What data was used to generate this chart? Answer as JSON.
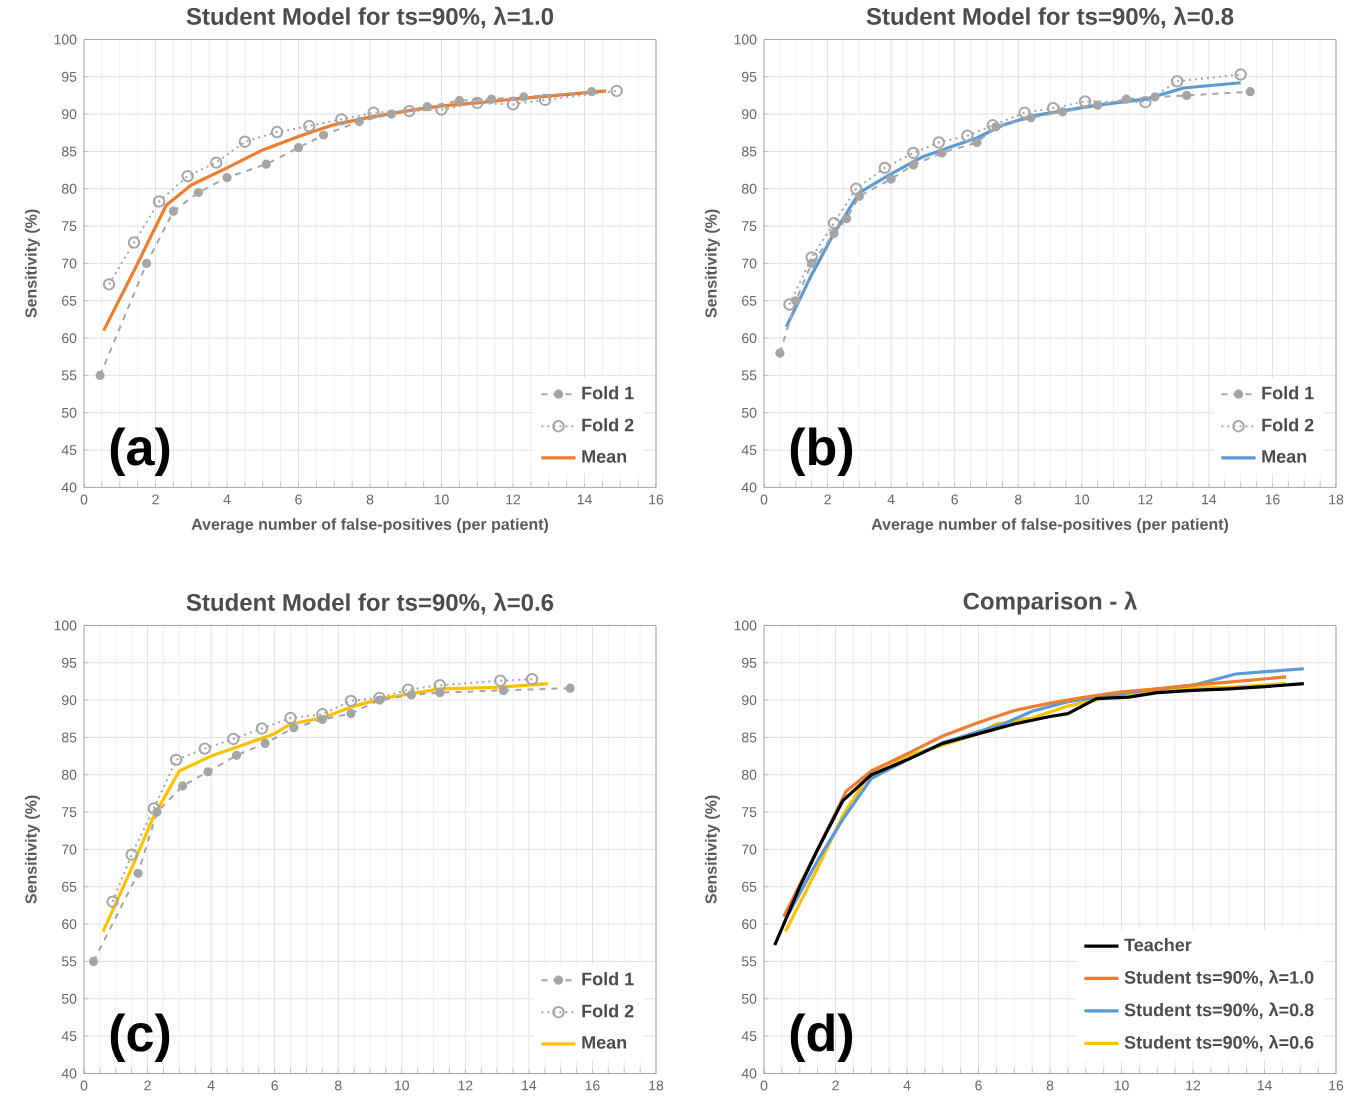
{
  "chart_data": [
    {
      "type": "line",
      "title": "Student Model for ts=90%, λ=1.0",
      "xlabel": "Average number of false-positives (per patient)",
      "ylabel": "Sensitivity (%)",
      "xlim": [
        0,
        16
      ],
      "xticks": [
        0,
        2,
        4,
        6,
        8,
        10,
        12,
        14,
        16
      ],
      "ylim": [
        40,
        100
      ],
      "yticks": [
        40,
        45,
        50,
        55,
        60,
        65,
        70,
        75,
        80,
        85,
        90,
        95,
        100
      ],
      "grid": true,
      "legend": "bottom right",
      "annotations": [
        "(a)"
      ],
      "series": [
        {
          "name": "Fold 1",
          "color": "#a5a5a5",
          "marker": "circle",
          "line_style": "dashed",
          "x": [
            0.45,
            1.75,
            2.5,
            3.2,
            4,
            5.1,
            6,
            6.7,
            7.7,
            8.6,
            9.6,
            10.5,
            11.4,
            12.3,
            14.2
          ],
          "values": [
            55,
            70,
            77,
            79.5,
            81.5,
            83.3,
            85.5,
            87.2,
            89,
            90,
            91,
            91.8,
            92,
            92.3,
            93
          ]
        },
        {
          "name": "Fold 2",
          "color": "#a5a5a5",
          "marker": "circle",
          "line_style": "dotted",
          "x": [
            0.7,
            1.4,
            2.1,
            2.9,
            3.7,
            4.5,
            5.4,
            6.3,
            7.2,
            8.1,
            9.1,
            10,
            11,
            12,
            12.9,
            14.9
          ],
          "values": [
            67.2,
            72.8,
            78.3,
            81.7,
            83.5,
            86.3,
            87.6,
            88.4,
            89.3,
            90.2,
            90.4,
            90.6,
            91.5,
            91.3,
            91.9,
            93.1
          ]
        },
        {
          "name": "Mean",
          "color": "#ed7d31",
          "marker": "none",
          "line_style": "solid",
          "x": [
            0.55,
            1.5,
            2.3,
            3,
            4,
            5,
            6,
            7,
            8,
            9,
            10,
            11,
            12,
            13,
            14.6
          ],
          "values": [
            61,
            70,
            77.8,
            80.5,
            82.8,
            85.2,
            87,
            88.6,
            89.6,
            90.4,
            91.1,
            91.5,
            92,
            92.4,
            93.1
          ]
        }
      ]
    },
    {
      "type": "line",
      "title": "Student Model for ts=90%, λ=0.8",
      "xlabel": "Average number of false-positives (per patient)",
      "ylabel": "Sensitivity (%)",
      "xlim": [
        0,
        18
      ],
      "xticks": [
        0,
        2,
        4,
        6,
        8,
        10,
        12,
        14,
        16,
        18
      ],
      "ylim": [
        40,
        100
      ],
      "yticks": [
        40,
        45,
        50,
        55,
        60,
        65,
        70,
        75,
        80,
        85,
        90,
        95,
        100
      ],
      "grid": true,
      "legend": "bottom right",
      "annotations": [
        "(b)"
      ],
      "series": [
        {
          "name": "Fold 1",
          "color": "#a5a5a5",
          "marker": "circle",
          "line_style": "dashed",
          "x": [
            0.5,
            1,
            1.5,
            2.2,
            2.6,
            3,
            4,
            4.7,
            5.6,
            6.7,
            7.3,
            8.4,
            9.4,
            10.5,
            11.4,
            12.3,
            13.3,
            15.3
          ],
          "values": [
            58,
            65,
            70,
            74,
            76,
            79,
            81.3,
            83.2,
            84.8,
            86.2,
            88.3,
            89.5,
            90.3,
            91.2,
            92,
            92.3,
            92.5,
            93
          ]
        },
        {
          "name": "Fold 2",
          "color": "#a5a5a5",
          "marker": "circle",
          "line_style": "dotted",
          "x": [
            0.8,
            1.5,
            2.2,
            2.9,
            3.8,
            4.7,
            5.5,
            6.4,
            7.2,
            8.2,
            9.1,
            10.1,
            12,
            13,
            15
          ],
          "values": [
            64.5,
            70.8,
            75.4,
            80,
            82.8,
            84.8,
            86.2,
            87.1,
            88.5,
            90.2,
            90.8,
            91.7,
            91.6,
            94.4,
            95.3
          ]
        },
        {
          "name": "Mean",
          "color": "#5b9bd5",
          "marker": "none",
          "line_style": "solid",
          "x": [
            0.7,
            1.5,
            2.2,
            3,
            4,
            5,
            6,
            6.7,
            7.5,
            8.5,
            9.5,
            10.5,
            12,
            13.2,
            15
          ],
          "values": [
            61.5,
            68.5,
            74,
            79.5,
            82,
            84.3,
            85.8,
            86.8,
            88.5,
            89.8,
            90.5,
            91.2,
            92,
            93.5,
            94.2
          ]
        }
      ]
    },
    {
      "type": "line",
      "title": "Student Model for ts=90%, λ=0.6",
      "ylabel": "Sensitivity (%)",
      "xlim": [
        0,
        18
      ],
      "xticks": [
        0,
        2,
        4,
        6,
        8,
        10,
        12,
        14,
        16,
        18
      ],
      "ylim": [
        40,
        100
      ],
      "yticks": [
        40,
        45,
        50,
        55,
        60,
        65,
        70,
        75,
        80,
        85,
        90,
        95,
        100
      ],
      "grid": true,
      "legend": "bottom right",
      "annotations": [
        "(c)"
      ],
      "series": [
        {
          "name": "Fold 1",
          "color": "#a5a5a5",
          "marker": "circle",
          "line_style": "dashed",
          "x": [
            0.3,
            1.7,
            2.3,
            3.1,
            3.9,
            4.8,
            5.7,
            6.6,
            7.5,
            8.4,
            9.3,
            10.3,
            11.2,
            13.2,
            15.3
          ],
          "values": [
            55,
            66.8,
            75,
            78.5,
            80.4,
            82.6,
            84.2,
            86.3,
            87.4,
            88.2,
            90,
            90.7,
            91,
            91.3,
            91.6
          ]
        },
        {
          "name": "Fold 2",
          "color": "#a5a5a5",
          "marker": "circle",
          "line_style": "dotted",
          "x": [
            0.9,
            1.5,
            2.2,
            2.9,
            3.8,
            4.7,
            5.6,
            6.5,
            7.5,
            8.4,
            9.3,
            10.2,
            11.2,
            13.1,
            14.1
          ],
          "values": [
            63,
            69.3,
            75.5,
            82,
            83.5,
            84.8,
            86.2,
            87.6,
            88.1,
            89.9,
            90.3,
            91.4,
            92,
            92.6,
            92.8
          ]
        },
        {
          "name": "Mean",
          "color": "#ffc000",
          "marker": "none",
          "line_style": "solid",
          "x": [
            0.6,
            1.5,
            2.2,
            3,
            4,
            5,
            6,
            6.5,
            7.5,
            8.5,
            9.5,
            10.5,
            11.2,
            13,
            14.6
          ],
          "values": [
            59,
            67.5,
            74.5,
            80.5,
            82.5,
            84,
            85.5,
            86.8,
            87.6,
            89.2,
            90.3,
            91,
            91.5,
            91.7,
            92.2
          ]
        }
      ]
    },
    {
      "type": "line",
      "title": "Comparison - λ",
      "ylabel": "Sensitivity (%)",
      "xlim": [
        0,
        16
      ],
      "xticks": [
        0,
        2,
        4,
        6,
        8,
        10,
        12,
        14,
        16
      ],
      "ylim": [
        40,
        100
      ],
      "yticks": [
        40,
        45,
        50,
        55,
        60,
        65,
        70,
        75,
        80,
        85,
        90,
        95,
        100
      ],
      "grid": true,
      "legend": "bottom right",
      "annotations": [
        "(d)"
      ],
      "series": [
        {
          "name": "Teacher",
          "color": "#000000",
          "marker": "none",
          "line_style": "solid",
          "x": [
            0.3,
            1,
            1.5,
            2.2,
            3,
            4,
            5,
            6,
            7,
            8,
            8.5,
            9.3,
            10.2,
            11,
            12,
            13,
            14,
            15.1
          ],
          "values": [
            57.2,
            65,
            70,
            76.5,
            80,
            82,
            84.2,
            85.5,
            86.8,
            87.8,
            88.2,
            90.2,
            90.4,
            91,
            91.3,
            91.5,
            91.8,
            92.2
          ]
        },
        {
          "name": "Student ts=90%, λ=1.0",
          "color": "#ed7d31",
          "marker": "none",
          "line_style": "solid",
          "x": [
            0.55,
            1.5,
            2.3,
            3,
            4,
            5,
            6,
            7,
            8,
            9,
            10,
            11,
            12,
            13,
            14.6
          ],
          "values": [
            61,
            70,
            77.8,
            80.5,
            82.8,
            85.2,
            87,
            88.6,
            89.6,
            90.4,
            91.1,
            91.5,
            92,
            92.4,
            93.1
          ]
        },
        {
          "name": "Student ts=90%, λ=0.8",
          "color": "#5b9bd5",
          "marker": "none",
          "line_style": "solid",
          "x": [
            0.7,
            1.5,
            2.2,
            3,
            4,
            5,
            6,
            6.7,
            7.5,
            8.5,
            9.5,
            10.5,
            12,
            13.2,
            15.1
          ],
          "values": [
            61.5,
            68.5,
            74,
            79.5,
            82,
            84.3,
            85.8,
            86.8,
            88.5,
            89.8,
            90.5,
            91.2,
            92,
            93.5,
            94.2
          ]
        },
        {
          "name": "Student ts=90%, λ=0.6",
          "color": "#ffc000",
          "marker": "none",
          "line_style": "solid",
          "x": [
            0.6,
            1.5,
            2.2,
            3,
            4,
            5,
            6,
            6.5,
            7.5,
            8.5,
            9.5,
            10.5,
            11.2,
            13,
            14.6
          ],
          "values": [
            59,
            67.5,
            74.5,
            80.5,
            82.5,
            84,
            85.5,
            86.8,
            87.6,
            89.2,
            90.3,
            91,
            91.5,
            91.7,
            92.2
          ]
        }
      ]
    }
  ]
}
